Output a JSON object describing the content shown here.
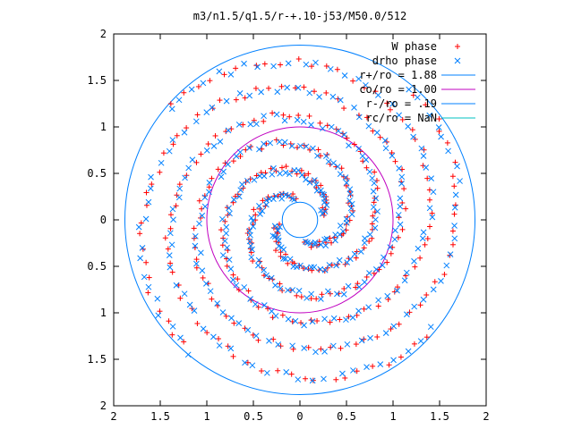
{
  "chart_data": {
    "type": "scatter",
    "title": "m3/n1.5/q1.5/r-+.10-j53/M50.0/512",
    "xlabel": "",
    "ylabel": "",
    "xlim": [
      -2,
      2
    ],
    "ylim": [
      -2,
      2
    ],
    "x_ticks": [
      {
        "value": -2,
        "label": "2"
      },
      {
        "value": -1.5,
        "label": "1.5"
      },
      {
        "value": -1,
        "label": "1"
      },
      {
        "value": -0.5,
        "label": "0.5"
      },
      {
        "value": 0,
        "label": "0"
      },
      {
        "value": 0.5,
        "label": "0.5"
      },
      {
        "value": 1,
        "label": "1"
      },
      {
        "value": 1.5,
        "label": "1.5"
      },
      {
        "value": 2,
        "label": "2"
      }
    ],
    "y_ticks": [
      {
        "value": 2,
        "label": "2"
      },
      {
        "value": 1.5,
        "label": "1.5"
      },
      {
        "value": 1,
        "label": "1"
      },
      {
        "value": 0.5,
        "label": "0.5"
      },
      {
        "value": 0,
        "label": "0"
      },
      {
        "value": -0.5,
        "label": "0.5"
      },
      {
        "value": -1,
        "label": "1"
      },
      {
        "value": -1.5,
        "label": "1.5"
      },
      {
        "value": -2,
        "label": "2"
      }
    ],
    "grid": false,
    "legend_position": "top-right",
    "series": [
      {
        "name": "W phase",
        "marker": "plus",
        "color": "#ff0000",
        "arms": 4,
        "r_start": 0.25,
        "r_end": 1.85,
        "turns": 1.35,
        "phase": 0.2,
        "n_per_arm": 95
      },
      {
        "name": "drho phase",
        "marker": "cross",
        "color": "#0080ff",
        "arms": 4,
        "r_start": 0.25,
        "r_end": 1.85,
        "turns": 1.35,
        "phase": 0.25,
        "n_per_arm": 95
      }
    ],
    "circles": [
      {
        "name": "r+/ro = 1.88",
        "radius": 1.88,
        "color": "#0080ff"
      },
      {
        "name": "co/ro = 1.00",
        "radius": 1.0,
        "color": "#c000c0"
      },
      {
        "name": "r-/ro = .19",
        "radius": 0.19,
        "color": "#0080ff"
      },
      {
        "name": "rc/ro = NaN",
        "radius": null,
        "color": "#00c0c0"
      }
    ]
  }
}
